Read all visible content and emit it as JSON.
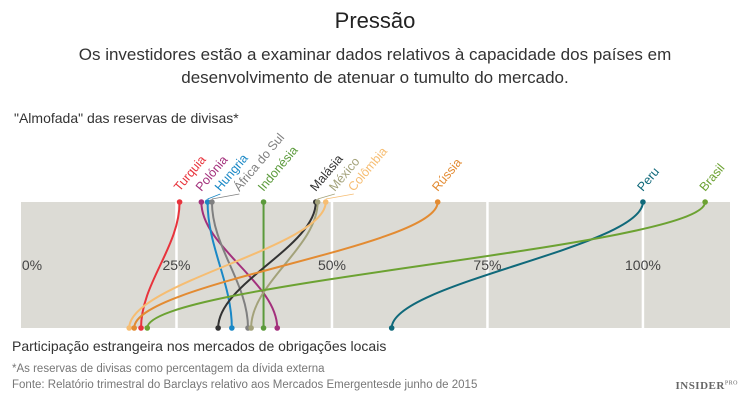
{
  "chart_data": {
    "type": "line",
    "title": "Pressão",
    "subtitle": "Os investidores estão a examinar dados relativos à capacidade dos países em desenvolvimento de atenuar o tumulto do mercado.",
    "top_axis_label": "\"Almofada\" das reservas de divisas*",
    "bottom_axis_label": "Participação estrangeira nos mercados de obrigações locais",
    "ticks": [
      "0%",
      "25%",
      "50%",
      "75%",
      "100%"
    ],
    "tick_values": [
      0,
      25,
      50,
      75,
      100
    ],
    "xlim": [
      0,
      114
    ],
    "series": [
      {
        "name": "Turquia",
        "reserves": 25.5,
        "foreign_share": 19.3,
        "color": "#e8333c"
      },
      {
        "name": "Polónia",
        "reserves": 29,
        "foreign_share": 41.2,
        "color": "#a3307c"
      },
      {
        "name": "Hungria",
        "reserves": 30,
        "foreign_share": 33.9,
        "color": "#1a88c6"
      },
      {
        "name": "África do Sul",
        "reserves": 30.7,
        "foreign_share": 36.5,
        "color": "#808080"
      },
      {
        "name": "Indonésia",
        "reserves": 39,
        "foreign_share": 39,
        "color": "#5b9a3b"
      },
      {
        "name": "Malásia",
        "reserves": 47.4,
        "foreign_share": 31.7,
        "color": "#333333"
      },
      {
        "name": "México",
        "reserves": 47.7,
        "foreign_share": 37,
        "color": "#a3a27a"
      },
      {
        "name": "Colômbia",
        "reserves": 49,
        "foreign_share": 17.4,
        "color": "#f6bd72"
      },
      {
        "name": "Rússia",
        "reserves": 67,
        "foreign_share": 18.2,
        "color": "#e38b32"
      },
      {
        "name": "Peru",
        "reserves": 100,
        "foreign_share": 59.6,
        "color": "#10697a"
      },
      {
        "name": "Brasil",
        "reserves": 110,
        "foreign_share": 20.3,
        "color": "#6ca232"
      }
    ]
  },
  "notes": {
    "footnote": "*As reservas de divisas como percentagem da dívida externa",
    "source": "Fonte: Relatório trimestral do Barclays relativo aos Mercados Emergentesde junho de 2015"
  },
  "logo": {
    "text": "INSIDER",
    "sup": "PRO"
  }
}
